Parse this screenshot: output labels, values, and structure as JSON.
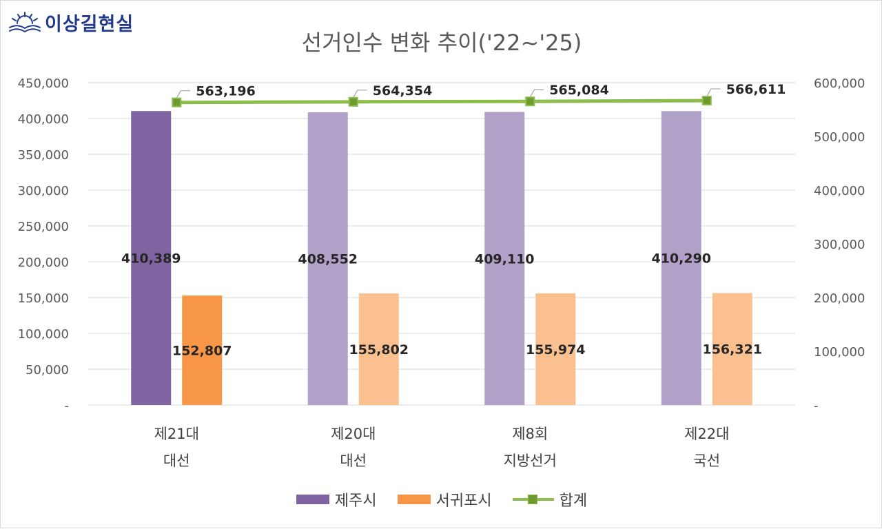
{
  "logo": {
    "text": "이상길현실"
  },
  "chart_data": {
    "type": "bar",
    "title": "선거인수 변화 추이('22~'25)",
    "categories": [
      [
        "제21대",
        "대선"
      ],
      [
        "제20대",
        "대선"
      ],
      [
        "제8회",
        "지방선거"
      ],
      [
        "제22대",
        "국선"
      ]
    ],
    "series": [
      {
        "name": "제주시",
        "type": "bar",
        "axis": "left",
        "values": [
          410389,
          408552,
          409110,
          410290
        ],
        "labels": [
          "410,389",
          "408,552",
          "409,110",
          "410,290"
        ]
      },
      {
        "name": "서귀포시",
        "type": "bar",
        "axis": "left",
        "values": [
          152807,
          155802,
          155974,
          156321
        ],
        "labels": [
          "152,807",
          "155,802",
          "155,974",
          "156,321"
        ]
      },
      {
        "name": "합계",
        "type": "line",
        "axis": "right",
        "values": [
          563196,
          564354,
          565084,
          566611
        ],
        "labels": [
          "563,196",
          "564,354",
          "565,084",
          "566,611"
        ]
      }
    ],
    "y_left": {
      "min": 0,
      "max": 450000,
      "ticks": [
        "-",
        "50,000",
        "100,000",
        "150,000",
        "200,000",
        "250,000",
        "300,000",
        "350,000",
        "400,000",
        "450,000"
      ]
    },
    "y_right": {
      "min": 0,
      "max": 600000,
      "ticks": [
        "-",
        "100,000",
        "200,000",
        "300,000",
        "400,000",
        "500,000",
        "600,000"
      ]
    },
    "grid": true,
    "legend_position": "bottom",
    "colors": {
      "jeju_highlight": "#8064a2",
      "jeju": "#b1a0c7",
      "seogwipo_highlight": "#f79646",
      "seogwipo": "#fac090",
      "total_line": "#8cbc4c",
      "total_marker": "#6e9a30"
    }
  }
}
